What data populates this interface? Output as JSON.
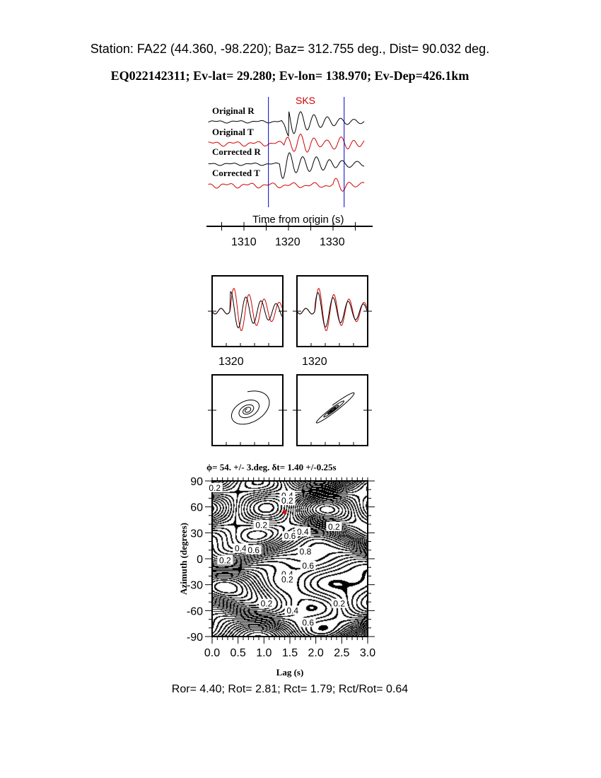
{
  "header": {
    "station_line": "Station: FA22 (44.360,  -98.220); Baz=  312.755 deg., Dist=   90.032 deg.",
    "event_line": "EQ022142311; Ev-lat=  29.280; Ev-lon= 138.970; Ev-Dep=426.1km"
  },
  "chart_data": [
    {
      "type": "line",
      "panel": "seismograms",
      "phase_label": "SKS",
      "series": [
        {
          "name": "Original R",
          "color": "#000000"
        },
        {
          "name": "Original T",
          "color": "#d00000"
        },
        {
          "name": "Corrected R",
          "color": "#000000"
        },
        {
          "name": "Corrected T",
          "color": "#d00000"
        }
      ],
      "window_markers_s": [
        1315.5,
        1332.5
      ],
      "window_color": "#0000c0",
      "xlabel": "Time from origin (s)",
      "xticks": [
        "1310",
        "1320",
        "1330"
      ],
      "xlim": [
        1302,
        1338
      ]
    },
    {
      "type": "line",
      "panel": "waveform-overlay-original",
      "xticks": [
        "1320"
      ]
    },
    {
      "type": "line",
      "panel": "waveform-overlay-corrected",
      "xticks": [
        "1320"
      ]
    },
    {
      "type": "line",
      "panel": "particle-motion-original"
    },
    {
      "type": "line",
      "panel": "particle-motion-corrected"
    },
    {
      "type": "heatmap",
      "panel": "energy-contour",
      "title": "ϕ= 54. +/- 3.deg. δt= 1.40 +/-0.25s",
      "xlabel": "Lag (s)",
      "ylabel": "Azimuth (degrees)",
      "xlim": [
        0,
        3
      ],
      "ylim": [
        -90,
        90
      ],
      "xticks": [
        "0.0",
        "0.5",
        "1.0",
        "1.5",
        "2.0",
        "2.5",
        "3.0"
      ],
      "yticks": [
        "90",
        "60",
        "30",
        "0",
        "-30",
        "-60",
        "-90"
      ],
      "best_fit": {
        "lag": 1.4,
        "azimuth": 54,
        "color": "#e00000"
      },
      "contour_labels": [
        {
          "text": "0.2",
          "lag": 0.05,
          "az": 82
        },
        {
          "text": "0.4",
          "lag": 1.45,
          "az": 73
        },
        {
          "text": "0.2",
          "lag": 1.45,
          "az": 67
        },
        {
          "text": "0.2",
          "lag": 0.95,
          "az": 39
        },
        {
          "text": "0.2",
          "lag": 2.35,
          "az": 37
        },
        {
          "text": "0.4",
          "lag": 1.75,
          "az": 31
        },
        {
          "text": "0.6",
          "lag": 1.5,
          "az": 26
        },
        {
          "text": "0.4",
          "lag": 0.55,
          "az": 12
        },
        {
          "text": "0.6",
          "lag": 0.8,
          "az": 10
        },
        {
          "text": "0.8",
          "lag": 1.8,
          "az": 8
        },
        {
          "text": "0.2",
          "lag": 0.25,
          "az": -2
        },
        {
          "text": "0.6",
          "lag": 1.85,
          "az": -8
        },
        {
          "text": "0.4",
          "lag": 1.45,
          "az": -18
        },
        {
          "text": "0.2",
          "lag": 1.45,
          "az": -24
        },
        {
          "text": "0.2",
          "lag": 1.05,
          "az": -52
        },
        {
          "text": "0.4",
          "lag": 1.55,
          "az": -60
        },
        {
          "text": "0.2",
          "lag": 2.45,
          "az": -52
        },
        {
          "text": "0.6",
          "lag": 1.85,
          "az": -74
        }
      ]
    }
  ],
  "footer": {
    "ratios_line": "Ror= 4.40; Rot= 2.81; Rct= 1.79; Rct/Rot= 0.64"
  }
}
